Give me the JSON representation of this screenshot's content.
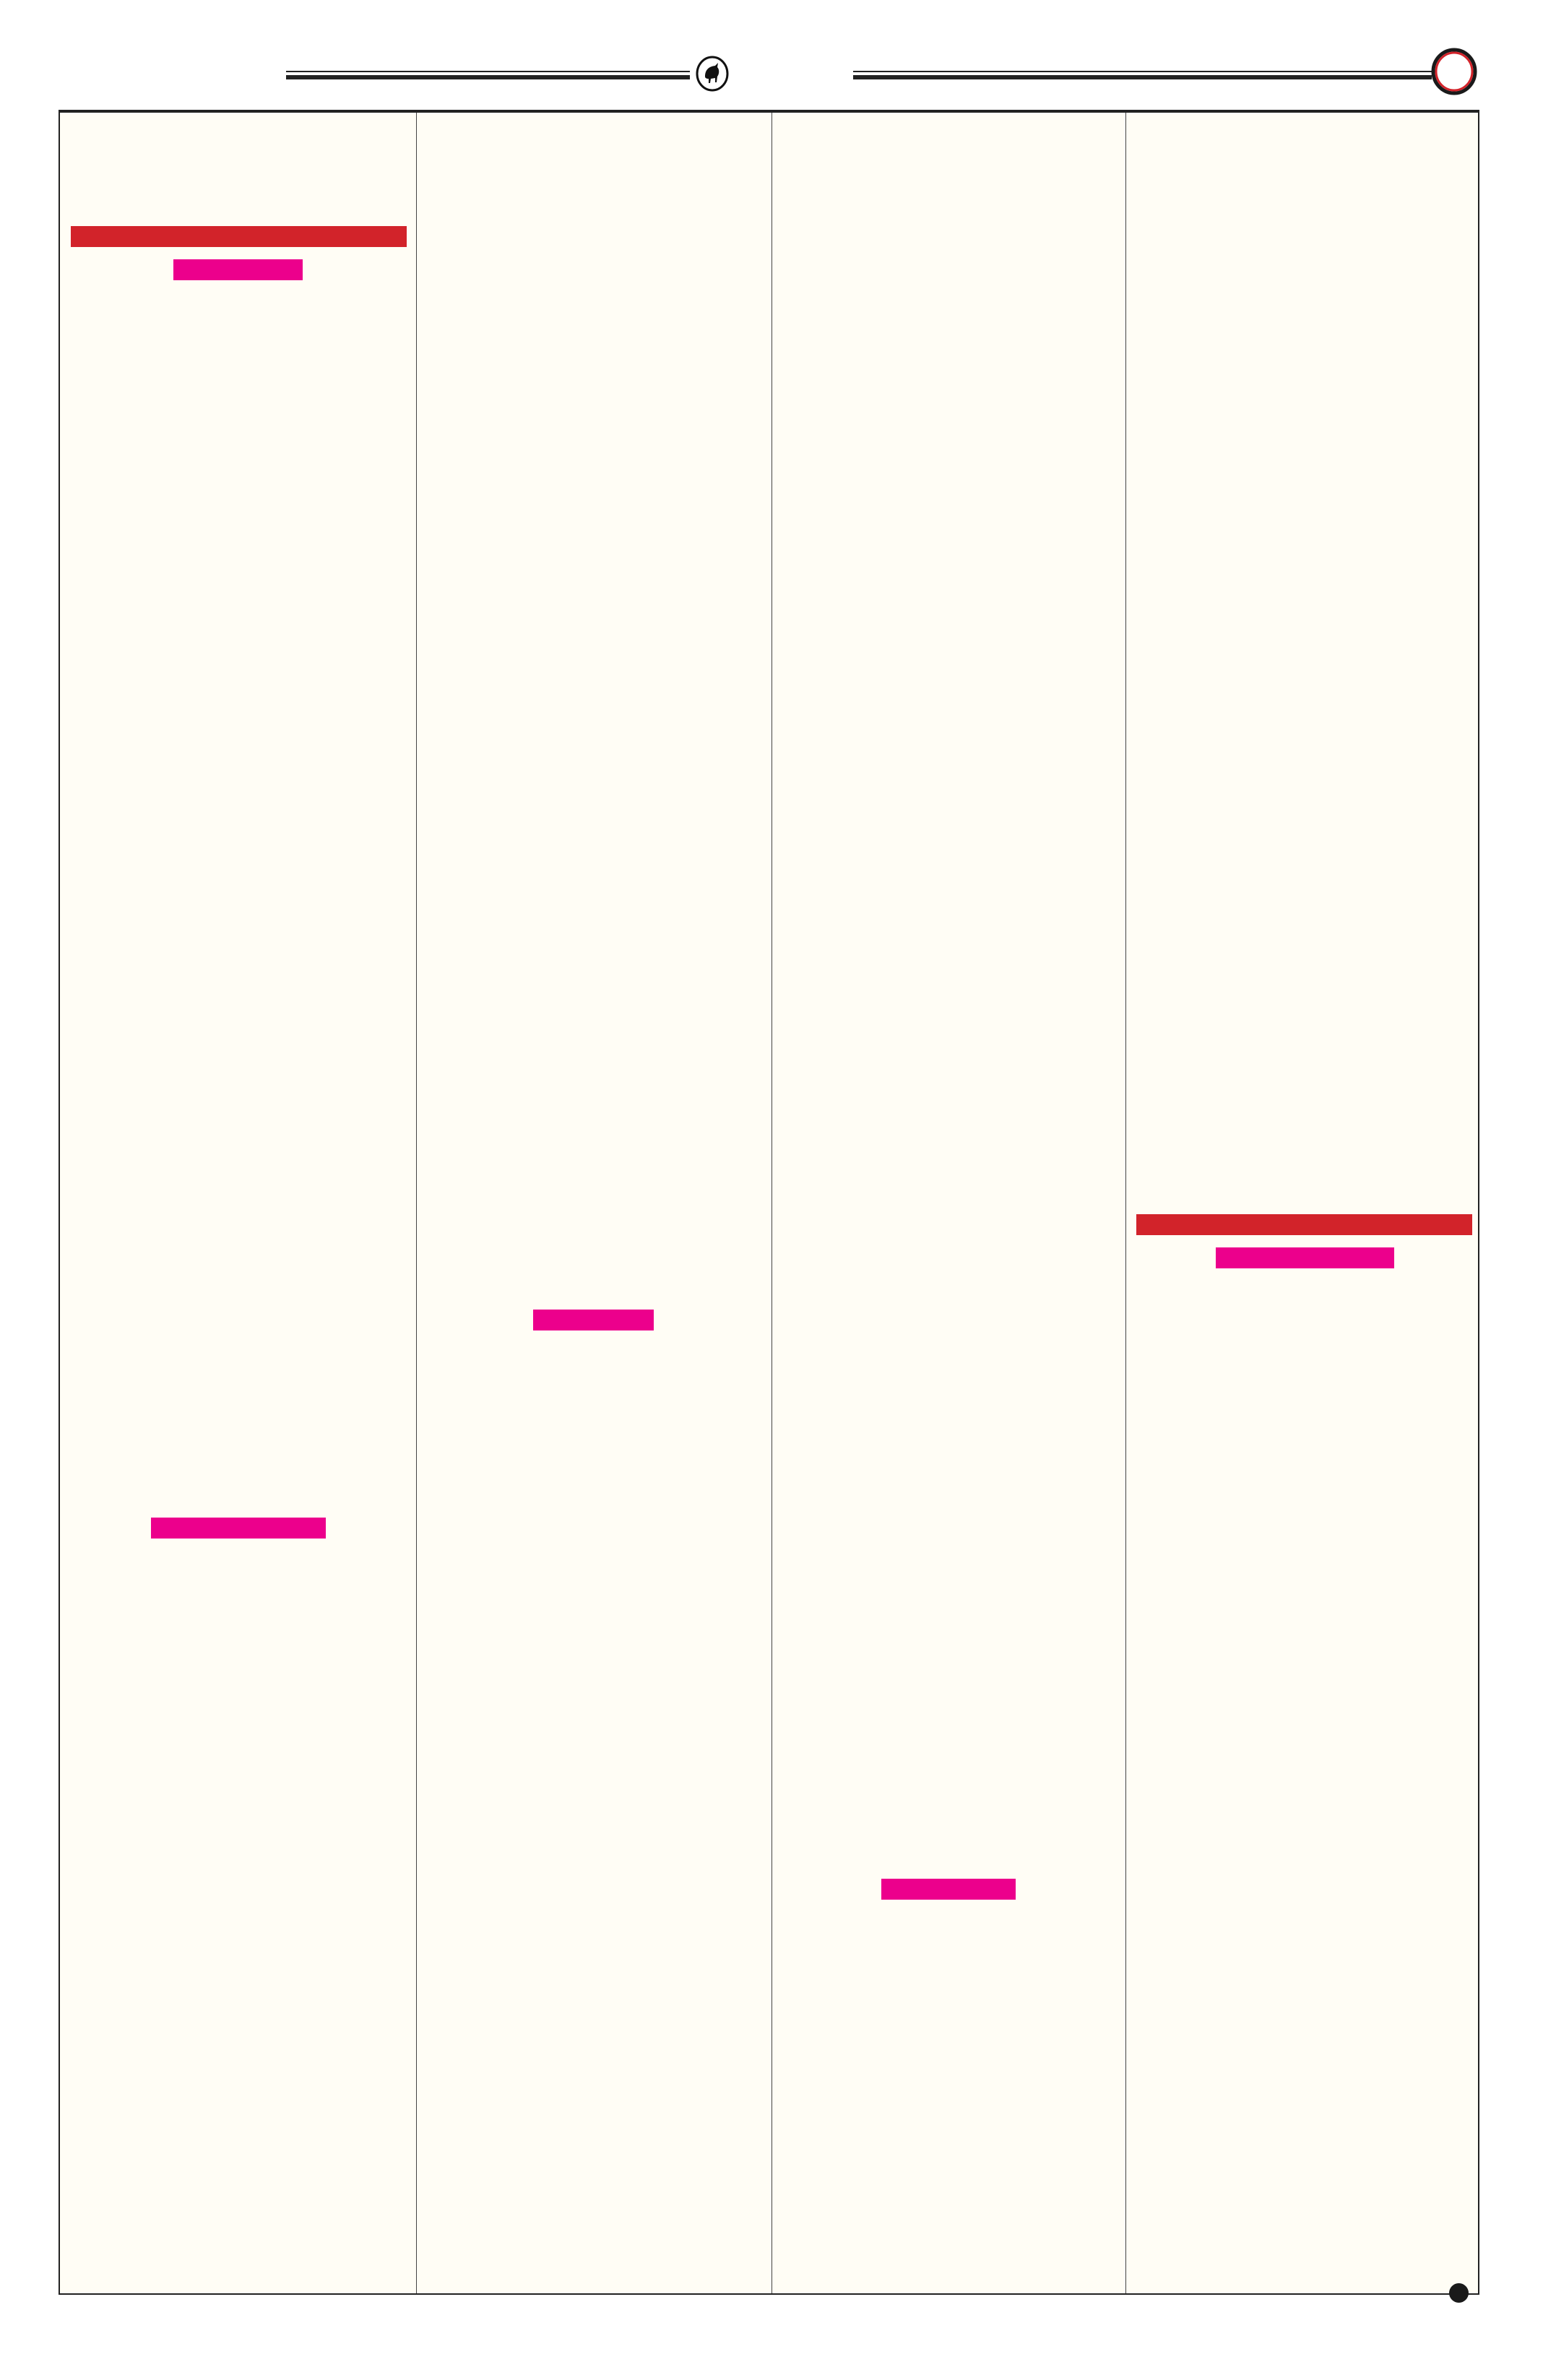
{
  "header": {
    "center_icon": "bull-emblem-icon",
    "right_icon": "red-ring-icon"
  },
  "footer": {
    "icon": "black-dot-icon"
  },
  "colors": {
    "page_background": "#fffdf5",
    "heading_bar": "#d2232a",
    "subheading_bar": "#ec008c",
    "rule": "#222222"
  },
  "columns": 4
}
